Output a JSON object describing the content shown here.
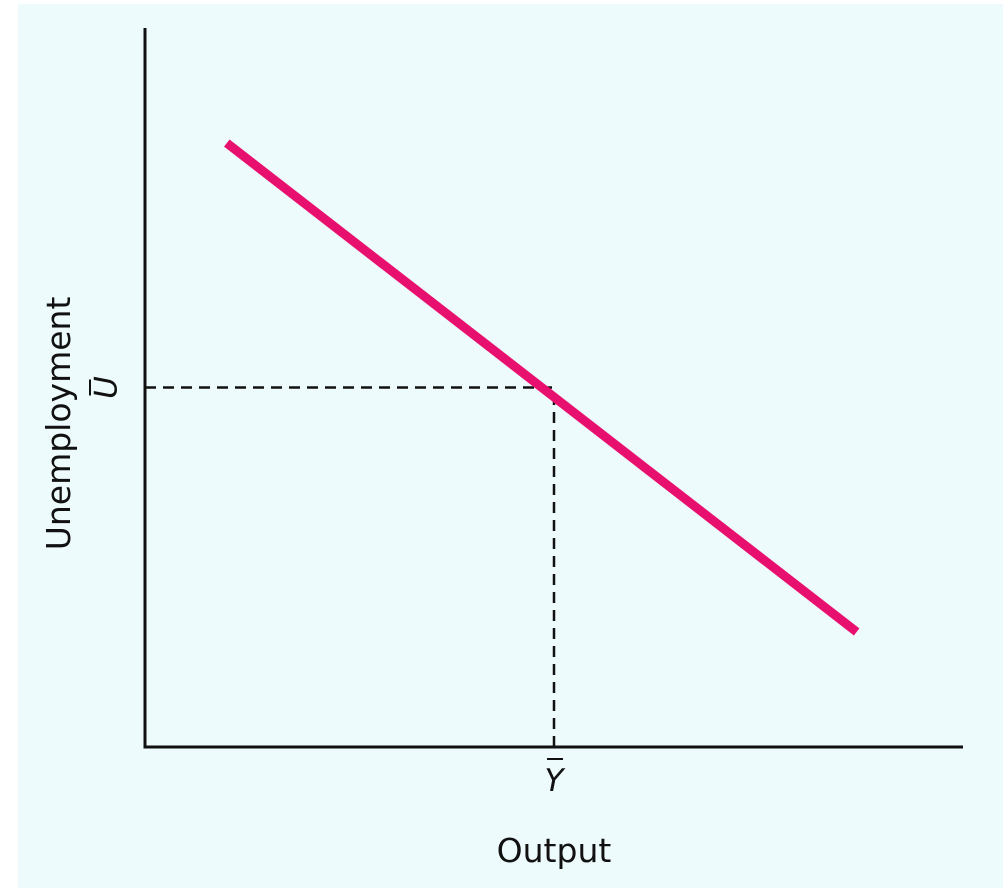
{
  "chart_data": {
    "type": "line",
    "title": "",
    "xlabel": "Output",
    "ylabel": "Unemployment",
    "x_ticks": [
      {
        "label": "Y",
        "value": 0.5,
        "overline": true
      }
    ],
    "y_ticks": [
      {
        "label": "U",
        "value": 0.5,
        "overline": true
      }
    ],
    "series": [
      {
        "x": [
          0.1,
          0.87
        ],
        "y": [
          0.84,
          0.16
        ]
      }
    ],
    "reference_lines": [
      {
        "from": [
          0.5,
          0
        ],
        "to": [
          0.5,
          0.5
        ],
        "style": "dashed"
      },
      {
        "from": [
          0,
          0.5
        ],
        "to": [
          0.5,
          0.5
        ],
        "style": "dashed"
      }
    ],
    "xlim": [
      0,
      1
    ],
    "ylim": [
      0,
      1
    ],
    "grid": false,
    "legend": "none",
    "colors": {
      "background": "#eefbfd",
      "line": "#e8106e",
      "axis": "#111111",
      "dashed": "#111111"
    }
  }
}
